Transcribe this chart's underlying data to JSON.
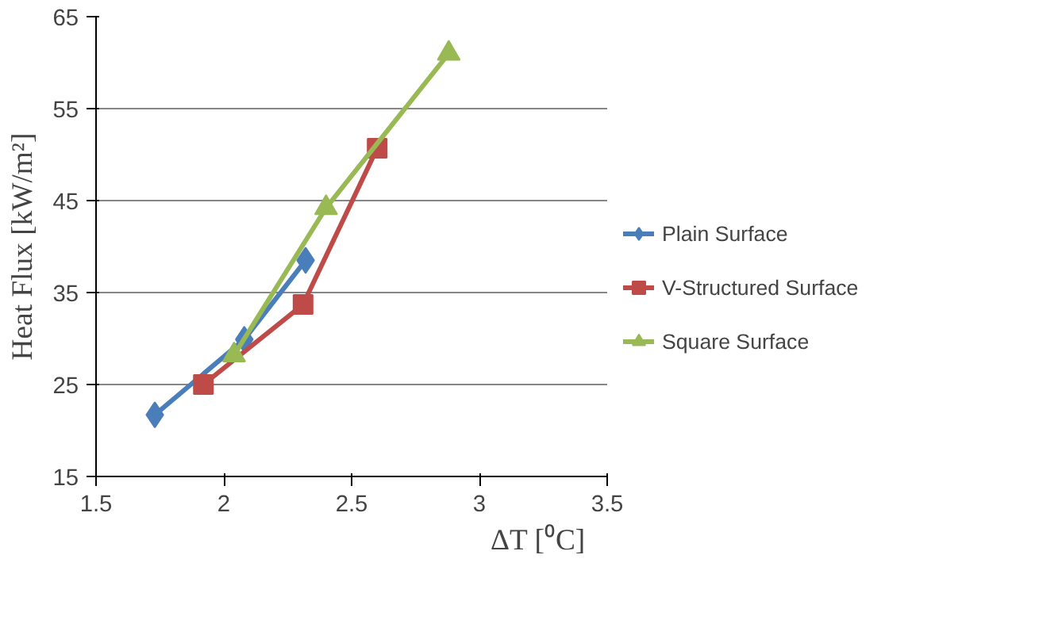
{
  "chart_data": {
    "type": "line",
    "xlabel": "ΔT [⁰C]",
    "ylabel": "Heat Flux [kW/m²]",
    "xlim": [
      1.5,
      3.5
    ],
    "xticks": [
      1.5,
      2,
      2.5,
      3,
      3.5
    ],
    "ylim": [
      15,
      65
    ],
    "yticks": [
      15,
      25,
      35,
      45,
      55,
      65
    ],
    "grid": "y",
    "legend": "right",
    "series": [
      {
        "name": "Plain Surface",
        "color": "#4a7ebb",
        "marker": "diamond",
        "x": [
          1.73,
          2.08,
          2.32
        ],
        "values": [
          21.7,
          29.9,
          38.5
        ]
      },
      {
        "name": "V-Structured Surface",
        "color": "#be4b48",
        "marker": "square",
        "x": [
          1.92,
          2.31,
          2.6
        ],
        "values": [
          25.0,
          33.7,
          50.7
        ]
      },
      {
        "name": "Square Surface",
        "color": "#98b954",
        "marker": "triangle",
        "x": [
          2.04,
          2.4,
          2.88
        ],
        "values": [
          28.2,
          44.2,
          61.0
        ]
      }
    ]
  }
}
